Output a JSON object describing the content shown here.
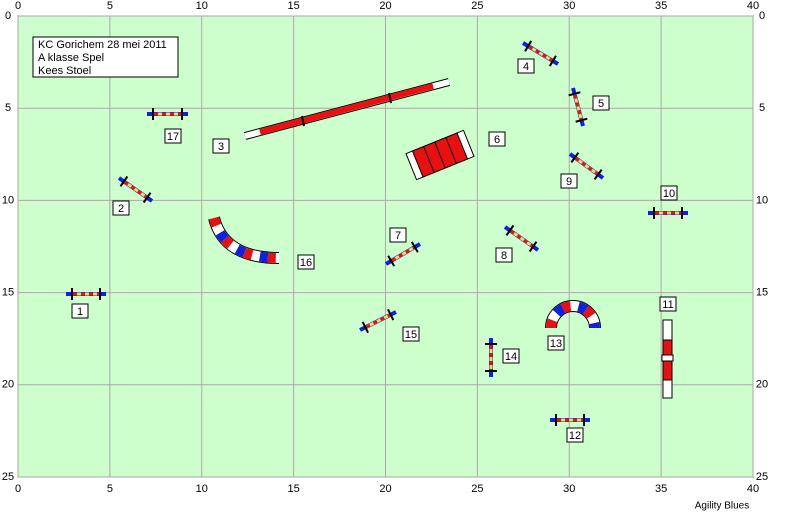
{
  "x_ticks": [
    0,
    5,
    10,
    15,
    20,
    25,
    30,
    35,
    40
  ],
  "y_ticks": [
    0,
    5,
    10,
    15,
    20,
    25
  ],
  "info": [
    "KC Gorichem 28 mei 2011",
    "A klasse Spel",
    "Kees Stoel"
  ],
  "obstacles": [
    "1",
    "2",
    "3",
    "4",
    "5",
    "6",
    "7",
    "8",
    "9",
    "10",
    "11",
    "12",
    "13",
    "14",
    "15",
    "16",
    "17"
  ],
  "footer": "Agility Blues"
}
